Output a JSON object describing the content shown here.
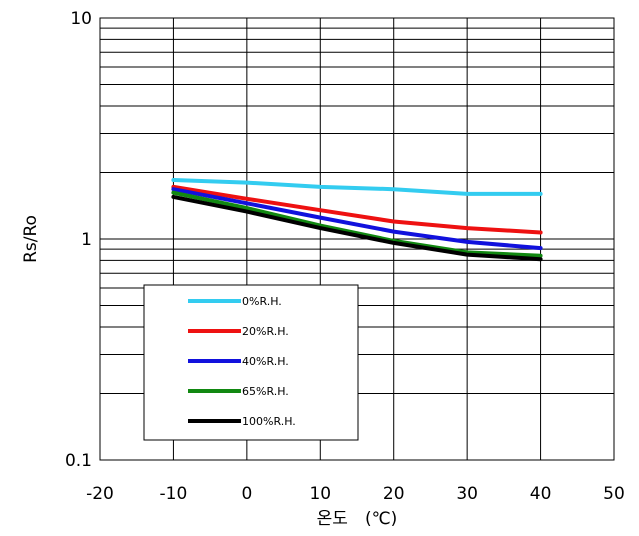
{
  "chart_data": {
    "type": "line",
    "xlabel": "온도　(℃)",
    "ylabel": "Rs/Ro",
    "x_scale": "linear",
    "y_scale": "log",
    "xlim": [
      -20,
      50
    ],
    "ylim": [
      0.1,
      10
    ],
    "x_ticks": [
      "-20",
      "-10",
      "0",
      "10",
      "20",
      "30",
      "40",
      "50"
    ],
    "y_ticks": [
      "0.1",
      "1",
      "10"
    ],
    "grid": true,
    "legend_position": "lower-left",
    "series": [
      {
        "name": "0%R.H.",
        "color": "#33ccf0",
        "x": [
          -10,
          0,
          10,
          20,
          30,
          40
        ],
        "y": [
          1.85,
          1.8,
          1.72,
          1.68,
          1.6,
          1.6
        ]
      },
      {
        "name": "20%R.H.",
        "color": "#ee1111",
        "x": [
          -10,
          0,
          10,
          20,
          30,
          40
        ],
        "y": [
          1.72,
          1.52,
          1.35,
          1.2,
          1.12,
          1.07
        ]
      },
      {
        "name": "40%R.H.",
        "color": "#1111dd",
        "x": [
          -10,
          0,
          10,
          20,
          30,
          40
        ],
        "y": [
          1.68,
          1.45,
          1.25,
          1.08,
          0.97,
          0.91
        ]
      },
      {
        "name": "65%R.H.",
        "color": "#118811",
        "x": [
          -10,
          0,
          10,
          20,
          30,
          40
        ],
        "y": [
          1.62,
          1.38,
          1.15,
          0.98,
          0.87,
          0.84
        ]
      },
      {
        "name": "100%R.H.",
        "color": "#000000",
        "x": [
          -10,
          0,
          10,
          20,
          30,
          40
        ],
        "y": [
          1.55,
          1.33,
          1.12,
          0.96,
          0.85,
          0.81
        ]
      }
    ]
  }
}
